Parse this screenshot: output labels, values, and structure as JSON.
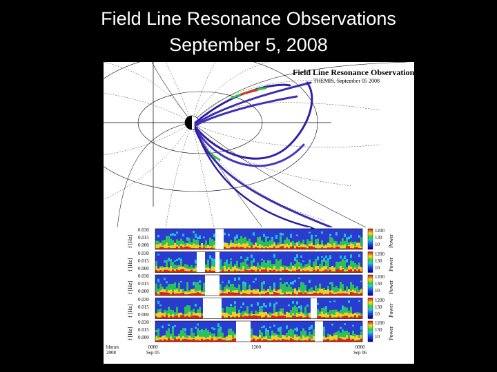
{
  "slide": {
    "title_line1": "Field Line Resonance Observations",
    "title_line2": "September 5, 2008"
  },
  "figure": {
    "title": "Field Line Resonance Observations",
    "subtitle": "THEMIS, September 05 2008",
    "spectrograms": {
      "freq_axis_label": "f [Hz]",
      "freq_ticks": [
        "0.030",
        "0.015",
        "0.000"
      ],
      "power_label": "Power",
      "power_ticks": [
        "1200",
        "130",
        "10"
      ],
      "time_axis": {
        "corner_line1": "hhmm",
        "corner_line2": "2008",
        "ticks": [
          {
            "line1": "0000",
            "line2": "Sep 05"
          },
          {
            "line1": "1200",
            "line2": ""
          },
          {
            "line1": "0000",
            "line2": "Sep 06"
          }
        ]
      },
      "panel_count": 5
    },
    "colors": {
      "spectrum_low": "#3a2fb0",
      "spectrum_mid": "#29c060",
      "spectrum_high": "#e02020"
    }
  }
}
